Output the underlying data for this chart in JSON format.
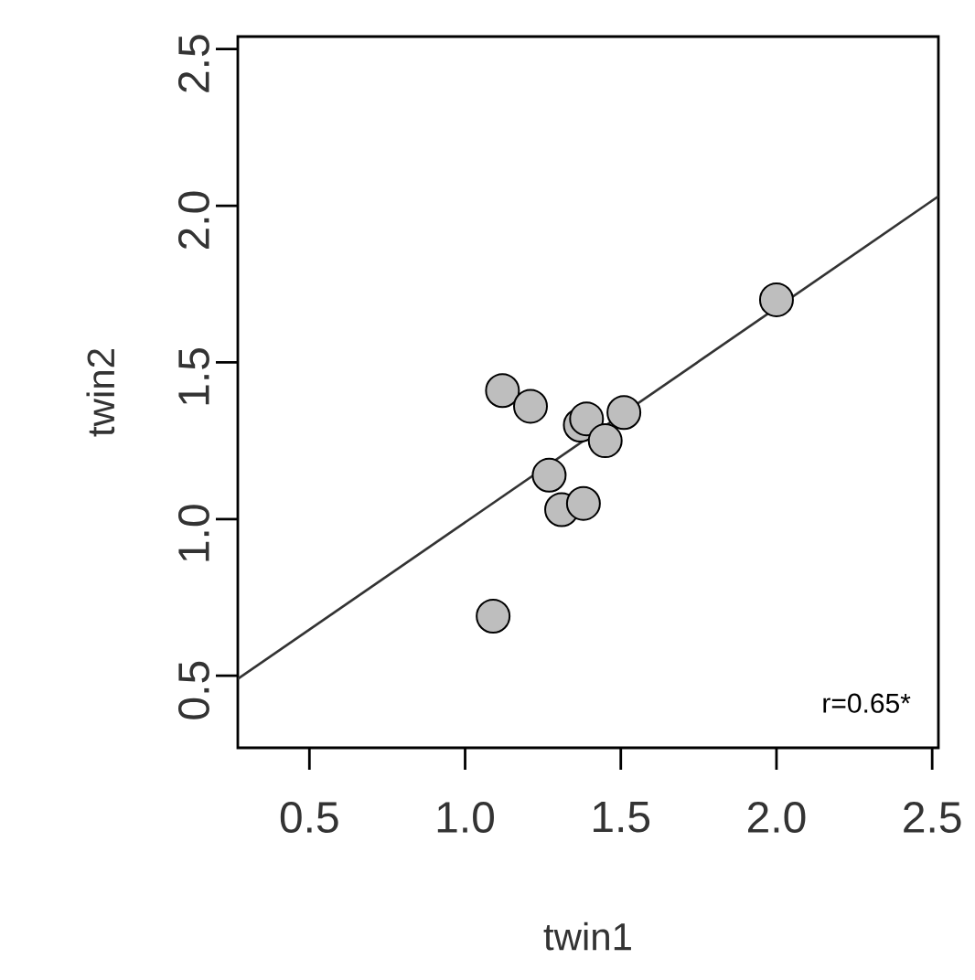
{
  "chart_data": {
    "type": "scatter",
    "xlabel": "twin1",
    "ylabel": "twin2",
    "xlim": [
      0.27,
      2.52
    ],
    "ylim": [
      0.27,
      2.54
    ],
    "xticks": [
      0.5,
      {
        "value": 1,
        "label": "1.0"
      },
      1.5,
      {
        "value": 2,
        "label": "2.0"
      },
      2.5
    ],
    "yticks": [
      0.5,
      {
        "value": 1,
        "label": "1.0"
      },
      1.5,
      {
        "value": 2,
        "label": "2.0"
      },
      2.5
    ],
    "series": [
      {
        "type": "line",
        "color": "#333333",
        "line_style": "solid",
        "marker": "none",
        "x": [
          0.27,
          2.52
        ],
        "values": [
          0.49,
          2.03
        ]
      },
      {
        "color": "#bebebe",
        "marker": "circle",
        "x": [
          1.12,
          1.21,
          1.37,
          1.39,
          1.45,
          1.51,
          1.27,
          1.31,
          1.38,
          1.09,
          2.0
        ],
        "values": [
          1.41,
          1.36,
          1.3,
          1.32,
          1.25,
          1.34,
          1.14,
          1.03,
          1.05,
          0.69,
          1.7
        ]
      }
    ],
    "annotations": [
      "r=0.65*"
    ]
  }
}
